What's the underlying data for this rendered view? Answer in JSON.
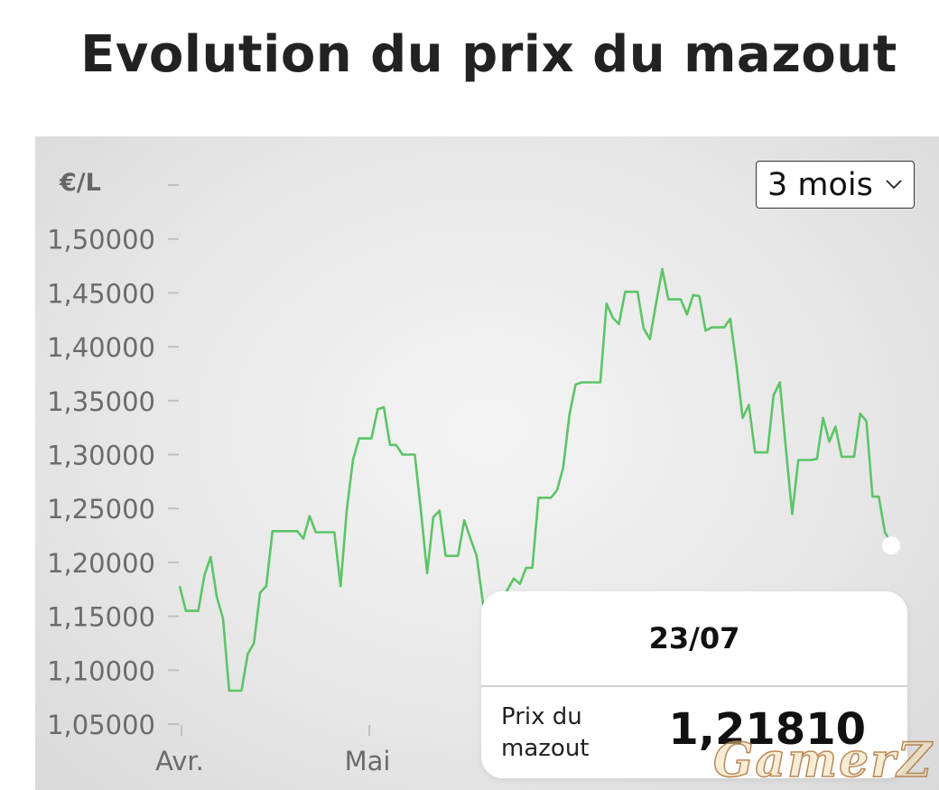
{
  "page": {
    "title": "Evolution du prix du mazout"
  },
  "controls": {
    "range_label": "3 mois"
  },
  "tooltip": {
    "date": "23/07",
    "label": "Prix du mazout",
    "value": "1,21810"
  },
  "watermark": "GamerZ",
  "colors": {
    "line": "#5cc466",
    "panel": "#e3e3e3",
    "tick": "#c0c0c0",
    "axis_text": "#6b6b6b"
  },
  "chart_data": {
    "type": "line",
    "title": "Evolution du prix du mazout",
    "ylabel": "€/L",
    "xlabel": "",
    "ylim": [
      1.05,
      1.55
    ],
    "y_ticks": [
      "1,05000",
      "1,10000",
      "1,15000",
      "1,20000",
      "1,25000",
      "1,30000",
      "1,35000",
      "1,40000",
      "1,45000",
      "1,50000"
    ],
    "x_ticks": [
      "Avr.",
      "Mai"
    ],
    "grid": false,
    "series": [
      {
        "values": [
          1.178,
          1.155,
          1.155,
          1.155,
          1.188,
          1.205,
          1.168,
          1.148,
          1.081,
          1.081,
          1.081,
          1.115,
          1.125,
          1.172,
          1.178,
          1.229,
          1.229,
          1.229,
          1.229,
          1.229,
          1.222,
          1.243,
          1.228,
          1.228,
          1.228,
          1.228,
          1.178,
          1.248,
          1.295,
          1.315,
          1.315,
          1.315,
          1.342,
          1.344,
          1.309,
          1.309,
          1.3,
          1.3,
          1.3,
          1.248,
          1.19,
          1.242,
          1.248,
          1.206,
          1.206,
          1.206,
          1.239,
          1.222,
          1.206,
          1.163,
          1.135,
          1.155,
          1.165,
          1.175,
          1.185,
          1.18,
          1.195,
          1.195,
          1.26,
          1.26,
          1.26,
          1.267,
          1.288,
          1.337,
          1.365,
          1.367,
          1.367,
          1.367,
          1.367,
          1.44,
          1.427,
          1.421,
          1.451,
          1.451,
          1.451,
          1.417,
          1.407,
          1.44,
          1.472,
          1.444,
          1.444,
          1.444,
          1.43,
          1.448,
          1.447,
          1.415,
          1.418,
          1.418,
          1.418,
          1.426,
          1.383,
          1.334,
          1.346,
          1.302,
          1.302,
          1.302,
          1.355,
          1.367,
          1.305,
          1.245,
          1.295,
          1.295,
          1.295,
          1.296,
          1.334,
          1.312,
          1.326,
          1.298,
          1.298,
          1.298,
          1.338,
          1.331,
          1.261,
          1.261,
          1.228,
          1.218
        ]
      }
    ],
    "last_point": {
      "date": "23/07",
      "value": 1.2181
    }
  }
}
